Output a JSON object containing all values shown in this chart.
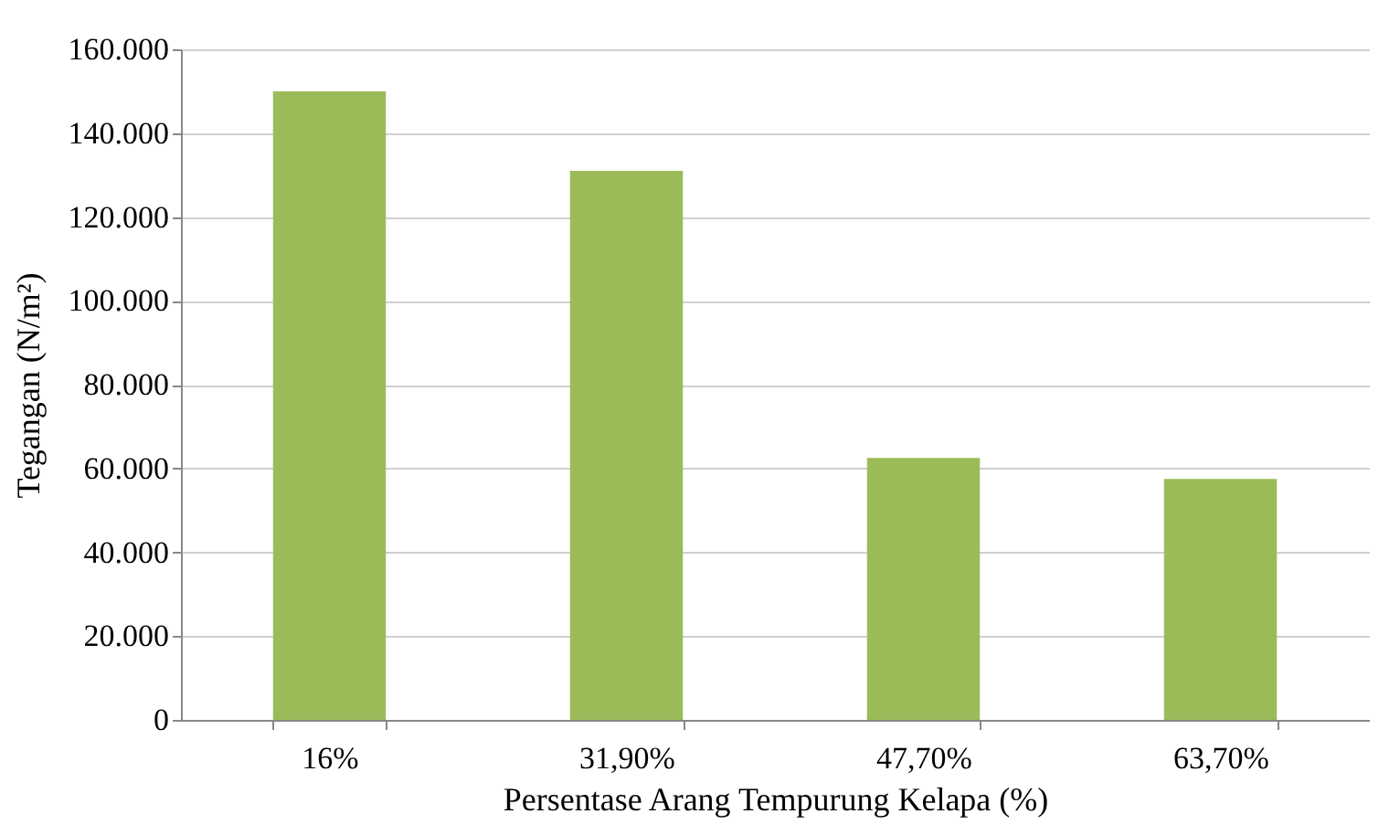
{
  "chart_data": {
    "type": "bar",
    "xlabel": "Persentase Arang Tempurung Kelapa (%)",
    "ylabel": "Tegangan (N/m²)",
    "categories": [
      "16%",
      "31,90%",
      "47,70%",
      "63,70%"
    ],
    "values": [
      150000,
      131000,
      62500,
      57500
    ],
    "color": "#9bbb59",
    "ylim": [
      0,
      160000
    ],
    "yticks": [
      {
        "value": 0,
        "label": "0"
      },
      {
        "value": 20000,
        "label": "20.000"
      },
      {
        "value": 40000,
        "label": "40.000"
      },
      {
        "value": 60000,
        "label": "60.000"
      },
      {
        "value": 80000,
        "label": "80.000"
      },
      {
        "value": 100000,
        "label": "100.000"
      },
      {
        "value": 120000,
        "label": "120.000"
      },
      {
        "value": 140000,
        "label": "140.000"
      },
      {
        "value": 160000,
        "label": "160.000"
      }
    ],
    "grid": "y"
  }
}
